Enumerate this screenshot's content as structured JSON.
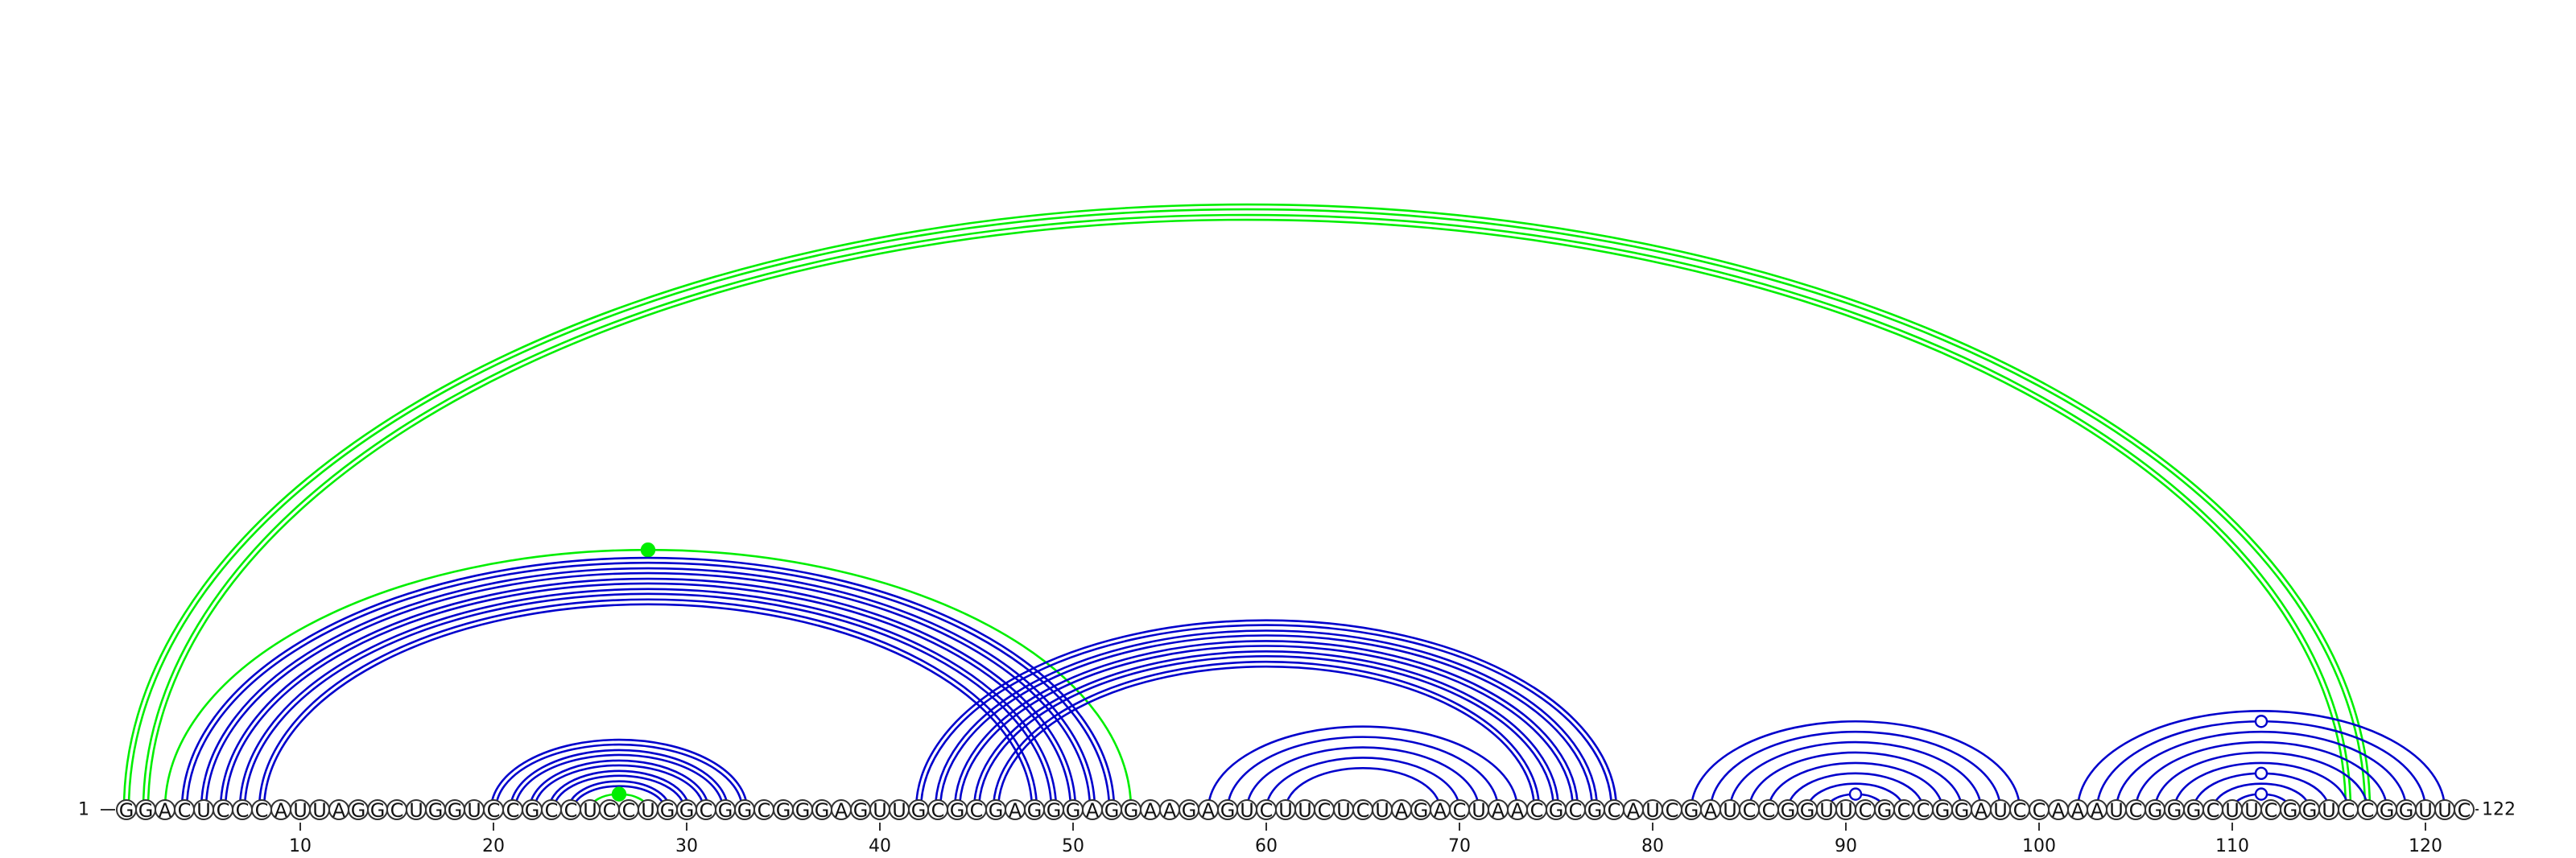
{
  "sequence": "GGACUCCCAUUAGGCUGGUCCGCCUCCUGGCGGCGGGAGUUGCGCGAGGGAGGAAGAGUCUUCUCUAGACUAACGCGCAUCGAUCCGGUUCGCCGGAUCCAAAUCGGGCUUCGGUCCGGUUC",
  "start_label": "1",
  "end_label": "122",
  "tick_values": [
    10,
    20,
    30,
    40,
    50,
    60,
    70,
    80,
    90,
    100,
    110,
    120
  ],
  "colors": {
    "blue": "#0000cc",
    "green": "#00ee00",
    "marker_fill": "#ffffff"
  },
  "arcs": [
    {
      "i": 1,
      "j": 117,
      "color": "green",
      "double": true
    },
    {
      "i": 2,
      "j": 116,
      "color": "green",
      "double": true
    },
    {
      "i": 3,
      "j": 53,
      "color": "green",
      "double": false,
      "marker": "filled"
    },
    {
      "i": 4,
      "j": 52,
      "color": "blue",
      "double": true
    },
    {
      "i": 5,
      "j": 51,
      "color": "blue",
      "double": true
    },
    {
      "i": 6,
      "j": 50,
      "color": "blue",
      "double": true
    },
    {
      "i": 7,
      "j": 49,
      "color": "blue",
      "double": true
    },
    {
      "i": 8,
      "j": 48,
      "color": "blue",
      "double": true
    },
    {
      "i": 20,
      "j": 33,
      "color": "blue",
      "double": true
    },
    {
      "i": 21,
      "j": 32,
      "color": "blue",
      "double": true
    },
    {
      "i": 22,
      "j": 31,
      "color": "blue",
      "double": true
    },
    {
      "i": 23,
      "j": 30,
      "color": "blue",
      "double": true
    },
    {
      "i": 24,
      "j": 29,
      "color": "blue",
      "double": true
    },
    {
      "i": 25,
      "j": 28,
      "color": "green",
      "double": false,
      "marker": "filled"
    },
    {
      "i": 42,
      "j": 78,
      "color": "blue",
      "double": true
    },
    {
      "i": 43,
      "j": 77,
      "color": "blue",
      "double": true
    },
    {
      "i": 44,
      "j": 76,
      "color": "blue",
      "double": true
    },
    {
      "i": 45,
      "j": 75,
      "color": "blue",
      "double": true
    },
    {
      "i": 46,
      "j": 74,
      "color": "blue",
      "double": true
    },
    {
      "i": 57,
      "j": 73,
      "color": "blue",
      "double": false
    },
    {
      "i": 58,
      "j": 72,
      "color": "blue",
      "double": false
    },
    {
      "i": 59,
      "j": 71,
      "color": "blue",
      "double": false
    },
    {
      "i": 60,
      "j": 70,
      "color": "blue",
      "double": false
    },
    {
      "i": 61,
      "j": 69,
      "color": "blue",
      "double": false
    },
    {
      "i": 82,
      "j": 99,
      "color": "blue",
      "double": false
    },
    {
      "i": 83,
      "j": 98,
      "color": "blue",
      "double": false
    },
    {
      "i": 84,
      "j": 97,
      "color": "blue",
      "double": false
    },
    {
      "i": 85,
      "j": 96,
      "color": "blue",
      "double": false
    },
    {
      "i": 86,
      "j": 95,
      "color": "blue",
      "double": false
    },
    {
      "i": 87,
      "j": 94,
      "color": "blue",
      "double": false
    },
    {
      "i": 88,
      "j": 93,
      "color": "blue",
      "double": false
    },
    {
      "i": 89,
      "j": 92,
      "color": "blue",
      "double": false,
      "marker": "open"
    },
    {
      "i": 102,
      "j": 121,
      "color": "blue",
      "double": false
    },
    {
      "i": 103,
      "j": 120,
      "color": "blue",
      "double": false,
      "marker": "open"
    },
    {
      "i": 104,
      "j": 119,
      "color": "blue",
      "double": false
    },
    {
      "i": 105,
      "j": 118,
      "color": "blue",
      "double": false
    },
    {
      "i": 106,
      "j": 117,
      "color": "blue",
      "double": false
    },
    {
      "i": 107,
      "j": 116,
      "color": "blue",
      "double": false
    },
    {
      "i": 108,
      "j": 115,
      "color": "blue",
      "double": false,
      "marker": "open"
    },
    {
      "i": 109,
      "j": 114,
      "color": "blue",
      "double": false
    },
    {
      "i": 110,
      "j": 113,
      "color": "blue",
      "double": false,
      "marker": "open"
    }
  ]
}
